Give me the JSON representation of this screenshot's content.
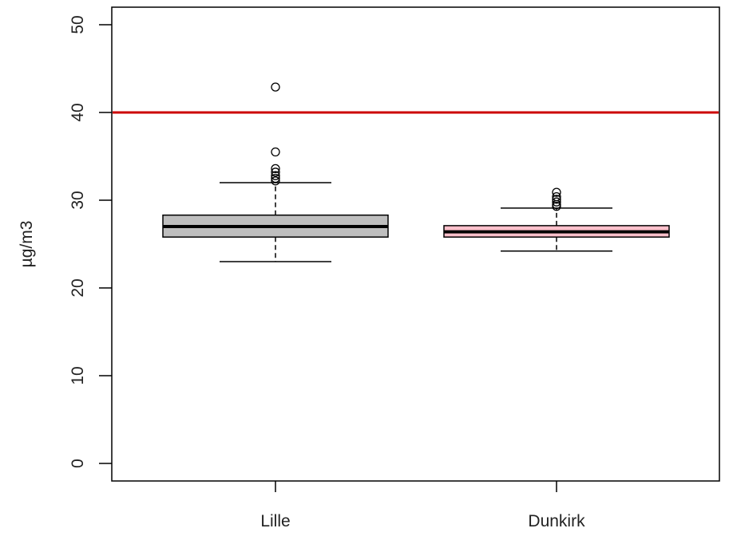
{
  "chart_data": {
    "type": "boxplot",
    "title": "",
    "xlabel": "",
    "ylabel": "µg/m3",
    "ylim": [
      -2,
      52
    ],
    "yticks": [
      0,
      10,
      20,
      30,
      40,
      50
    ],
    "grid": false,
    "categories": [
      "Lille",
      "Dunkirk"
    ],
    "boxes": [
      {
        "label": "Lille",
        "whisker_low": 23.0,
        "q1": 25.8,
        "median": 27.0,
        "q3": 28.3,
        "whisker_high": 32.0,
        "outliers": [
          32.2,
          32.5,
          32.8,
          33.2,
          33.6,
          35.5,
          42.9
        ],
        "fill": "#bebebe"
      },
      {
        "label": "Dunkirk",
        "whisker_low": 24.2,
        "q1": 25.8,
        "median": 26.4,
        "q3": 27.1,
        "whisker_high": 29.1,
        "outliers": [
          29.3,
          29.5,
          29.8,
          30.1,
          30.4,
          30.9
        ],
        "fill": "#ffc0cb"
      }
    ],
    "reference_line": {
      "y": 40,
      "color": "#cc0000"
    }
  }
}
